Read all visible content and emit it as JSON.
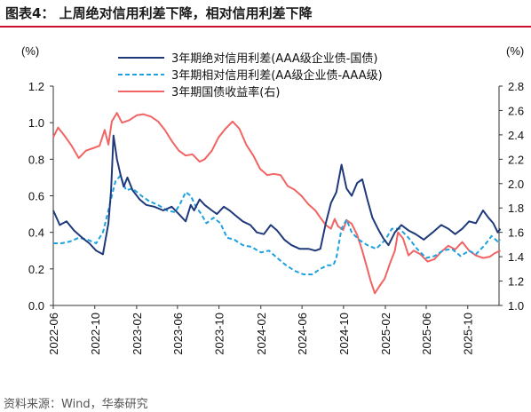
{
  "figure": {
    "title": "图表4：  上周绝对信用利差下降，相对信用利差下降",
    "source": "资料来源：Wind，华泰研究"
  },
  "chart_data": {
    "type": "line",
    "left_axis_unit": "(%)",
    "right_axis_unit": "(%)",
    "ylim_left": [
      0.0,
      1.2
    ],
    "ylim_right": [
      1.0,
      2.8
    ],
    "y_ticks_left": [
      "0.0",
      "0.2",
      "0.4",
      "0.6",
      "0.8",
      "1.0",
      "1.2"
    ],
    "y_ticks_right": [
      "1.0",
      "1.2",
      "1.4",
      "1.6",
      "1.8",
      "2.0",
      "2.2",
      "2.4",
      "2.6",
      "2.8"
    ],
    "x_range": [
      "2022-06",
      "2026-01"
    ],
    "x_ticks": [
      "2022-06",
      "2022-10",
      "2023-02",
      "2023-06",
      "2023-10",
      "2024-02",
      "2024-06",
      "2024-10",
      "2025-02",
      "2025-06",
      "2025-10"
    ],
    "legend_position": "top",
    "grid": false,
    "series": [
      {
        "name": "3年期绝对信用利差(AAA级企业债-国债)",
        "axis": "left",
        "color": "#1f3a7a",
        "style": "solid",
        "points": [
          [
            "2022-06-01",
            0.52
          ],
          [
            "2022-06-20",
            0.44
          ],
          [
            "2022-07-10",
            0.46
          ],
          [
            "2022-08-01",
            0.41
          ],
          [
            "2022-08-25",
            0.37
          ],
          [
            "2022-09-15",
            0.34
          ],
          [
            "2022-10-05",
            0.3
          ],
          [
            "2022-10-25",
            0.28
          ],
          [
            "2022-11-10",
            0.45
          ],
          [
            "2022-11-18",
            0.63
          ],
          [
            "2022-11-25",
            0.93
          ],
          [
            "2022-12-05",
            0.8
          ],
          [
            "2022-12-15",
            0.72
          ],
          [
            "2022-12-25",
            0.65
          ],
          [
            "2023-01-05",
            0.7
          ],
          [
            "2023-01-20",
            0.63
          ],
          [
            "2023-02-10",
            0.58
          ],
          [
            "2023-03-01",
            0.55
          ],
          [
            "2023-03-25",
            0.54
          ],
          [
            "2023-04-20",
            0.52
          ],
          [
            "2023-05-15",
            0.54
          ],
          [
            "2023-06-05",
            0.5
          ],
          [
            "2023-06-25",
            0.46
          ],
          [
            "2023-07-10",
            0.55
          ],
          [
            "2023-07-20",
            0.52
          ],
          [
            "2023-08-05",
            0.58
          ],
          [
            "2023-08-20",
            0.55
          ],
          [
            "2023-09-10",
            0.52
          ],
          [
            "2023-09-25",
            0.5
          ],
          [
            "2023-10-15",
            0.54
          ],
          [
            "2023-11-01",
            0.52
          ],
          [
            "2023-11-20",
            0.49
          ],
          [
            "2023-12-10",
            0.46
          ],
          [
            "2024-01-01",
            0.44
          ],
          [
            "2024-01-20",
            0.4
          ],
          [
            "2024-02-10",
            0.39
          ],
          [
            "2024-03-01",
            0.44
          ],
          [
            "2024-03-20",
            0.41
          ],
          [
            "2024-04-10",
            0.36
          ],
          [
            "2024-05-01",
            0.33
          ],
          [
            "2024-05-25",
            0.31
          ],
          [
            "2024-06-20",
            0.31
          ],
          [
            "2024-07-10",
            0.3
          ],
          [
            "2024-07-25",
            0.31
          ],
          [
            "2024-08-10",
            0.45
          ],
          [
            "2024-08-25",
            0.56
          ],
          [
            "2024-09-10",
            0.62
          ],
          [
            "2024-09-25",
            0.77
          ],
          [
            "2024-10-10",
            0.64
          ],
          [
            "2024-10-25",
            0.6
          ],
          [
            "2024-11-10",
            0.67
          ],
          [
            "2024-11-25",
            0.69
          ],
          [
            "2024-12-10",
            0.58
          ],
          [
            "2024-12-25",
            0.48
          ],
          [
            "2025-01-10",
            0.42
          ],
          [
            "2025-01-25",
            0.37
          ],
          [
            "2025-02-10",
            0.33
          ],
          [
            "2025-03-01",
            0.4
          ],
          [
            "2025-03-20",
            0.44
          ],
          [
            "2025-04-10",
            0.41
          ],
          [
            "2025-05-01",
            0.39
          ],
          [
            "2025-05-25",
            0.36
          ],
          [
            "2025-06-20",
            0.4
          ],
          [
            "2025-07-15",
            0.44
          ],
          [
            "2025-08-05",
            0.42
          ],
          [
            "2025-08-25",
            0.39
          ],
          [
            "2025-09-15",
            0.42
          ],
          [
            "2025-10-05",
            0.46
          ],
          [
            "2025-10-25",
            0.45
          ],
          [
            "2025-11-15",
            0.52
          ],
          [
            "2025-12-01",
            0.48
          ],
          [
            "2025-12-15",
            0.45
          ],
          [
            "2025-12-28",
            0.4
          ],
          [
            "2026-01-05",
            0.42
          ]
        ]
      },
      {
        "name": "3年期相对信用利差(AA级企业债-AAA级)",
        "axis": "left",
        "color": "#1ea1e0",
        "style": "dashed",
        "points": [
          [
            "2022-06-01",
            0.34
          ],
          [
            "2022-06-25",
            0.34
          ],
          [
            "2022-07-20",
            0.35
          ],
          [
            "2022-08-15",
            0.37
          ],
          [
            "2022-09-10",
            0.36
          ],
          [
            "2022-10-05",
            0.34
          ],
          [
            "2022-10-25",
            0.4
          ],
          [
            "2022-11-10",
            0.52
          ],
          [
            "2022-11-20",
            0.6
          ],
          [
            "2022-12-01",
            0.68
          ],
          [
            "2022-12-15",
            0.71
          ],
          [
            "2023-01-01",
            0.63
          ],
          [
            "2023-01-20",
            0.64
          ],
          [
            "2023-02-15",
            0.6
          ],
          [
            "2023-03-10",
            0.57
          ],
          [
            "2023-04-05",
            0.55
          ],
          [
            "2023-05-01",
            0.52
          ],
          [
            "2023-05-25",
            0.51
          ],
          [
            "2023-06-10",
            0.56
          ],
          [
            "2023-06-25",
            0.62
          ],
          [
            "2023-07-10",
            0.6
          ],
          [
            "2023-07-25",
            0.54
          ],
          [
            "2023-08-10",
            0.5
          ],
          [
            "2023-08-25",
            0.45
          ],
          [
            "2023-09-15",
            0.48
          ],
          [
            "2023-10-05",
            0.45
          ],
          [
            "2023-10-25",
            0.37
          ],
          [
            "2023-11-15",
            0.36
          ],
          [
            "2023-12-10",
            0.33
          ],
          [
            "2024-01-05",
            0.32
          ],
          [
            "2024-02-01",
            0.29
          ],
          [
            "2024-02-25",
            0.3
          ],
          [
            "2024-03-20",
            0.26
          ],
          [
            "2024-04-15",
            0.22
          ],
          [
            "2024-05-10",
            0.19
          ],
          [
            "2024-06-05",
            0.17
          ],
          [
            "2024-07-01",
            0.17
          ],
          [
            "2024-07-25",
            0.2
          ],
          [
            "2024-08-15",
            0.22
          ],
          [
            "2024-09-01",
            0.22
          ],
          [
            "2024-09-10",
            0.26
          ],
          [
            "2024-09-25",
            0.42
          ],
          [
            "2024-10-10",
            0.47
          ],
          [
            "2024-10-25",
            0.4
          ],
          [
            "2024-11-15",
            0.36
          ],
          [
            "2024-12-10",
            0.33
          ],
          [
            "2025-01-05",
            0.31
          ],
          [
            "2025-02-01",
            0.36
          ],
          [
            "2025-02-20",
            0.42
          ],
          [
            "2025-03-15",
            0.42
          ],
          [
            "2025-04-10",
            0.37
          ],
          [
            "2025-05-05",
            0.31
          ],
          [
            "2025-06-01",
            0.26
          ],
          [
            "2025-06-25",
            0.27
          ],
          [
            "2025-07-20",
            0.3
          ],
          [
            "2025-08-15",
            0.31
          ],
          [
            "2025-09-10",
            0.27
          ],
          [
            "2025-10-05",
            0.3
          ],
          [
            "2025-10-25",
            0.28
          ],
          [
            "2025-11-20",
            0.33
          ],
          [
            "2025-12-10",
            0.38
          ],
          [
            "2025-12-28",
            0.35
          ],
          [
            "2026-01-05",
            0.36
          ]
        ]
      },
      {
        "name": "3年期国债收益率(右)",
        "axis": "right",
        "color": "#f06463",
        "style": "solid",
        "points": [
          [
            "2022-06-01",
            2.38
          ],
          [
            "2022-06-15",
            2.46
          ],
          [
            "2022-07-05",
            2.39
          ],
          [
            "2022-07-25",
            2.31
          ],
          [
            "2022-08-15",
            2.21
          ],
          [
            "2022-09-05",
            2.27
          ],
          [
            "2022-09-25",
            2.29
          ],
          [
            "2022-10-15",
            2.31
          ],
          [
            "2022-10-30",
            2.44
          ],
          [
            "2022-11-10",
            2.32
          ],
          [
            "2022-11-20",
            2.51
          ],
          [
            "2022-12-05",
            2.58
          ],
          [
            "2022-12-20",
            2.5
          ],
          [
            "2023-01-10",
            2.52
          ],
          [
            "2023-02-01",
            2.56
          ],
          [
            "2023-02-20",
            2.57
          ],
          [
            "2023-03-15",
            2.55
          ],
          [
            "2023-04-05",
            2.51
          ],
          [
            "2023-04-25",
            2.44
          ],
          [
            "2023-05-15",
            2.35
          ],
          [
            "2023-06-05",
            2.27
          ],
          [
            "2023-06-25",
            2.23
          ],
          [
            "2023-07-15",
            2.24
          ],
          [
            "2023-08-05",
            2.18
          ],
          [
            "2023-08-20",
            2.2
          ],
          [
            "2023-09-10",
            2.27
          ],
          [
            "2023-09-30",
            2.38
          ],
          [
            "2023-10-20",
            2.45
          ],
          [
            "2023-11-10",
            2.51
          ],
          [
            "2023-11-30",
            2.45
          ],
          [
            "2023-12-20",
            2.32
          ],
          [
            "2024-01-10",
            2.23
          ],
          [
            "2024-01-30",
            2.12
          ],
          [
            "2024-02-20",
            2.07
          ],
          [
            "2024-03-10",
            2.08
          ],
          [
            "2024-03-30",
            2.07
          ],
          [
            "2024-04-20",
            1.98
          ],
          [
            "2024-05-10",
            1.95
          ],
          [
            "2024-05-30",
            1.9
          ],
          [
            "2024-06-20",
            1.83
          ],
          [
            "2024-07-10",
            1.78
          ],
          [
            "2024-07-25",
            1.72
          ],
          [
            "2024-08-10",
            1.66
          ],
          [
            "2024-08-25",
            1.63
          ],
          [
            "2024-09-05",
            1.71
          ],
          [
            "2024-09-15",
            1.65
          ],
          [
            "2024-09-30",
            1.62
          ],
          [
            "2024-10-10",
            1.7
          ],
          [
            "2024-10-25",
            1.67
          ],
          [
            "2024-11-10",
            1.58
          ],
          [
            "2024-11-25",
            1.45
          ],
          [
            "2024-12-10",
            1.3
          ],
          [
            "2024-12-20",
            1.2
          ],
          [
            "2025-01-01",
            1.1
          ],
          [
            "2025-01-15",
            1.16
          ],
          [
            "2025-01-30",
            1.22
          ],
          [
            "2025-02-15",
            1.35
          ],
          [
            "2025-03-01",
            1.45
          ],
          [
            "2025-03-10",
            1.6
          ],
          [
            "2025-03-25",
            1.55
          ],
          [
            "2025-04-10",
            1.41
          ],
          [
            "2025-04-25",
            1.45
          ],
          [
            "2025-05-15",
            1.42
          ],
          [
            "2025-06-05",
            1.36
          ],
          [
            "2025-06-25",
            1.38
          ],
          [
            "2025-07-15",
            1.44
          ],
          [
            "2025-08-05",
            1.49
          ],
          [
            "2025-08-25",
            1.46
          ],
          [
            "2025-09-15",
            1.52
          ],
          [
            "2025-10-05",
            1.45
          ],
          [
            "2025-10-25",
            1.41
          ],
          [
            "2025-11-15",
            1.39
          ],
          [
            "2025-12-05",
            1.4
          ],
          [
            "2025-12-20",
            1.43
          ],
          [
            "2026-01-05",
            1.45
          ]
        ]
      }
    ]
  }
}
